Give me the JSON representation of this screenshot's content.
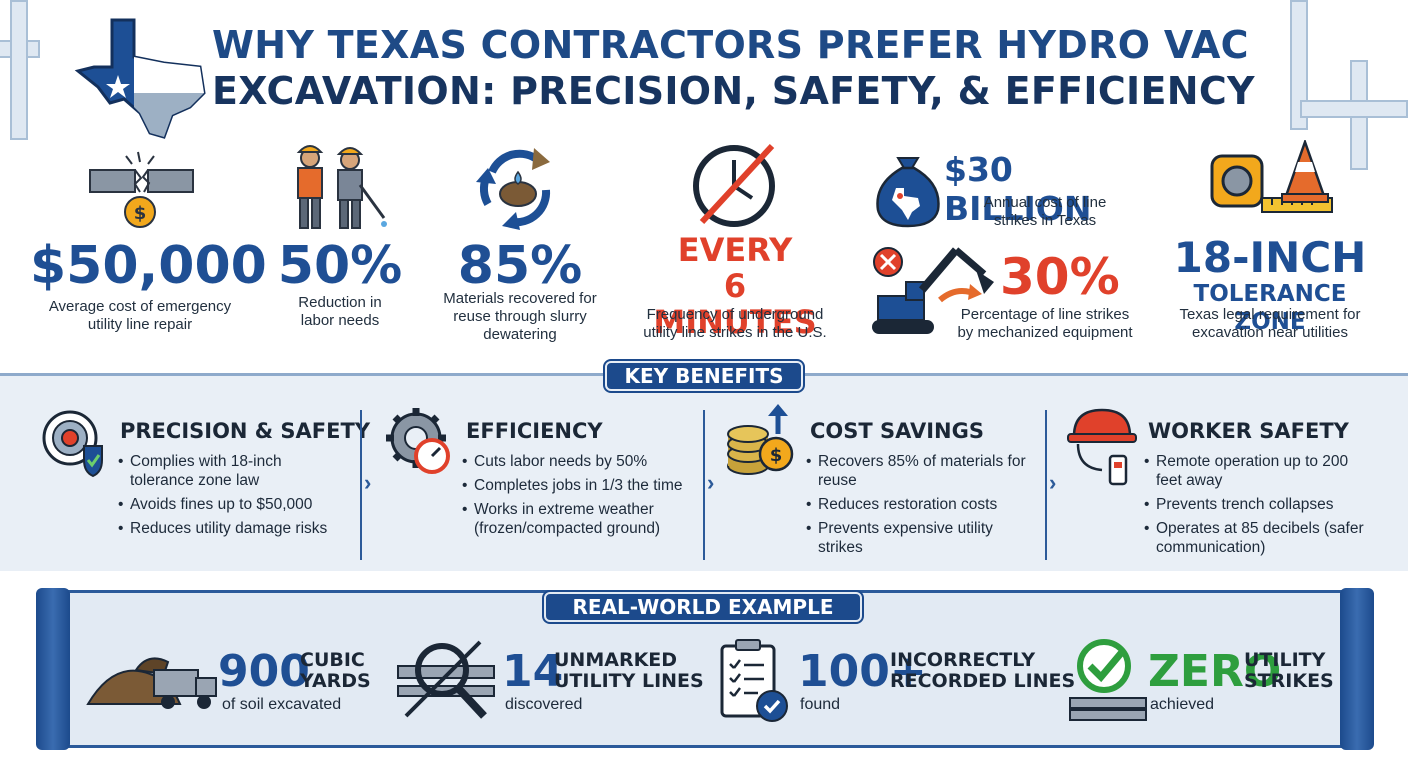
{
  "title": {
    "line1": "WHY TEXAS CONTRACTORS PREFER HYDRO VAC",
    "line2": "EXCAVATION: PRECISION, SAFETY, & EFFICIENCY"
  },
  "stats": [
    {
      "value": "$50,000",
      "caption_1": "Average cost of emergency",
      "caption_2": "utility line repair"
    },
    {
      "value": "50%",
      "caption_1": "Reduction in",
      "caption_2": "labor needs"
    },
    {
      "value": "85%",
      "caption_1": "Materials recovered for",
      "caption_2": "reuse through slurry",
      "caption_3": "dewatering"
    },
    {
      "value_1": "EVERY",
      "value_2": "6 MINUTES",
      "caption_1": "Frequency of underground",
      "caption_2": "utility line strikes in the U.S."
    },
    {
      "value": "$30 BILLION",
      "caption_1": "Annual cost of line",
      "caption_2": "strikes in Texas"
    },
    {
      "value": "30%",
      "caption_1": "Percentage of line strikes",
      "caption_2": "by mechanized equipment"
    },
    {
      "value_1": "18-INCH",
      "value_2": "TOLERANCE ZONE",
      "caption_1": "Texas legal requirement for",
      "caption_2": "excavation near utilities"
    }
  ],
  "benefits_label": "KEY BENEFITS",
  "benefits": [
    {
      "heading": "PRECISION & SAFETY",
      "items": [
        "Complies with 18-inch tolerance zone law",
        "Avoids fines up to $50,000",
        "Reduces utility damage risks"
      ]
    },
    {
      "heading": "EFFICIENCY",
      "items": [
        "Cuts labor needs by 50%",
        "Completes jobs in 1/3 the time",
        "Works in extreme weather (frozen/compacted ground)"
      ]
    },
    {
      "heading": "COST SAVINGS",
      "items": [
        "Recovers 85% of materials for reuse",
        "Reduces restoration costs",
        "Prevents expensive utility strikes"
      ]
    },
    {
      "heading": "WORKER SAFETY",
      "items": [
        "Remote operation up to 200 feet away",
        "Prevents trench collapses",
        "Operates at 85 decibels (safer communication)"
      ]
    }
  ],
  "example_label": "REAL-WORLD EXAMPLE",
  "examples": [
    {
      "value": "900",
      "sub_1": "CUBIC",
      "sub_2": "YARDS",
      "caption": "of soil excavated"
    },
    {
      "value": "14",
      "sub_1": "UNMARKED",
      "sub_2": "UTILITY LINES",
      "caption": "discovered"
    },
    {
      "value": "100+",
      "sub_1": "INCORRECTLY",
      "sub_2": "RECORDED LINES",
      "caption": "found"
    },
    {
      "value": "ZERO",
      "sub_1": "UTILITY",
      "sub_2": "STRIKES",
      "caption": "achieved"
    }
  ],
  "colors": {
    "navy": "#1c4a8c",
    "red": "#e0412b",
    "green": "#2e9e3e",
    "band": "#e9eff6"
  },
  "icons": [
    "texas-map-icon",
    "broken-pipe-icon",
    "workers-icon",
    "recycle-icon",
    "clock-icon",
    "money-bag-icon",
    "excavator-icon",
    "tape-measure-icon",
    "cone-icon",
    "target-shield-icon",
    "gear-gauge-icon",
    "coins-icon",
    "hard-hat-icon",
    "dump-truck-icon",
    "magnifier-pipe-icon",
    "clipboard-icon",
    "check-pipe-icon"
  ]
}
